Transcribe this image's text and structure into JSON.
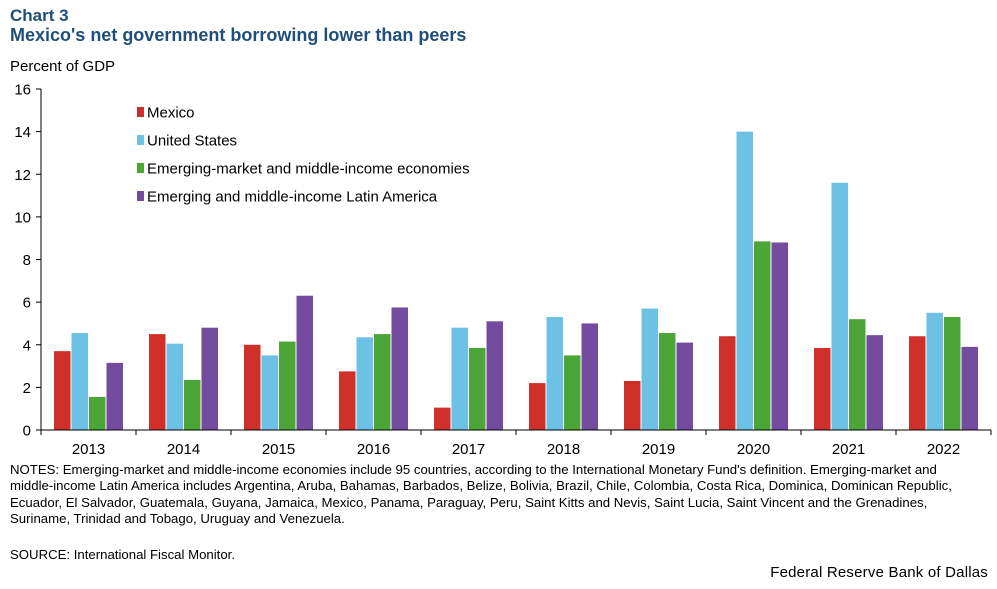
{
  "header": {
    "chart_label": "Chart 3",
    "title": "Mexico's net government borrowing lower than peers"
  },
  "y_unit_label": "Percent of GDP",
  "chart_data": {
    "type": "bar",
    "title": "Mexico's net government borrowing lower than peers",
    "ylabel": "Percent of GDP",
    "xlabel": "",
    "ylim": [
      0,
      16
    ],
    "yticks": [
      0,
      2,
      4,
      6,
      8,
      10,
      12,
      14,
      16
    ],
    "grid": false,
    "legend_position": "top-left",
    "categories": [
      "2013",
      "2014",
      "2015",
      "2016",
      "2017",
      "2018",
      "2019",
      "2020",
      "2021",
      "2022"
    ],
    "series": [
      {
        "name": "Mexico",
        "color": "#d0302a",
        "values": [
          3.7,
          4.5,
          4.0,
          2.75,
          1.05,
          2.2,
          2.3,
          4.4,
          3.85,
          4.4
        ]
      },
      {
        "name": "United States",
        "color": "#6cc1e5",
        "values": [
          4.55,
          4.05,
          3.5,
          4.35,
          4.8,
          5.3,
          5.7,
          14.0,
          11.6,
          5.5
        ]
      },
      {
        "name": "Emerging-market and middle-income economies",
        "color": "#4ca537",
        "values": [
          1.55,
          2.35,
          4.15,
          4.5,
          3.85,
          3.5,
          4.55,
          8.85,
          5.2,
          5.3
        ]
      },
      {
        "name": "Emerging and middle-income Latin America",
        "color": "#734c9f",
        "values": [
          3.15,
          4.8,
          6.3,
          5.75,
          5.1,
          5.0,
          4.1,
          8.8,
          4.45,
          3.9
        ]
      }
    ]
  },
  "footer": {
    "notes": "NOTES: Emerging-market and middle-income economies include 95 countries, according to the International Monetary Fund's definition. Emerging-market and middle-income Latin America includes Argentina, Aruba, Bahamas, Barbados, Belize, Bolivia, Brazil, Chile, Colombia, Costa Rica, Dominica, Dominican Republic, Ecuador, El Salvador, Guatemala, Guyana, Jamaica, Mexico, Panama, Paraguay, Peru, Saint Kitts and Nevis, Saint Lucia, Saint Vincent and the Grenadines, Suriname, Trinidad and Tobago, Uruguay and Venezuela.",
    "source": "SOURCE: International  Fiscal Monitor.",
    "credit": "Federal Reserve Bank of Dallas"
  }
}
